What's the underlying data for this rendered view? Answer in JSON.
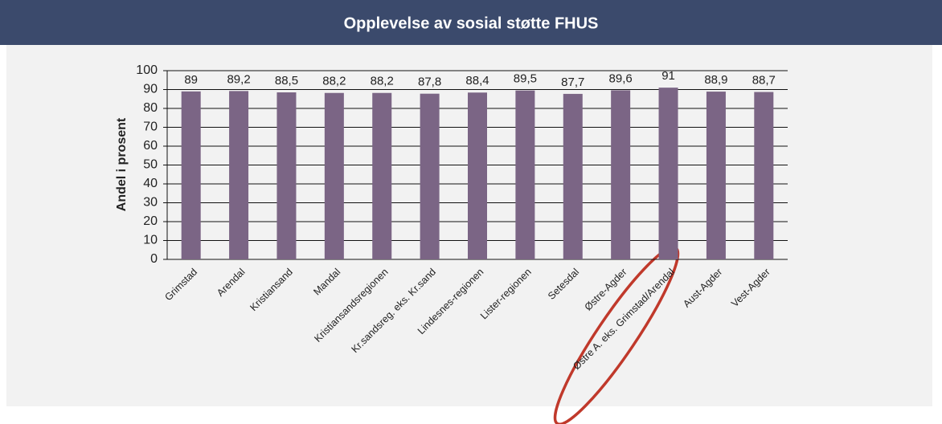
{
  "chart_data": {
    "type": "bar",
    "title": "Opplevelse av sosial støtte FHUS",
    "y_label": "Andel i prosent",
    "categories": [
      "Grimstad",
      "Arendal",
      "Kristiansand",
      "Mandal",
      "Kristiansandsregionen",
      "Kr.sandsreg. eks. Kr.sand",
      "Lindesnes-regionen",
      "Lister-regionen",
      "Setesdal",
      "Østre-Agder",
      "Østre A. eks. Grimstad/Arendal",
      "Aust-Agder",
      "Vest-Agder"
    ],
    "values": [
      89,
      89.2,
      88.5,
      88.2,
      88.2,
      87.8,
      88.4,
      89.5,
      87.7,
      89.6,
      91,
      88.9,
      88.7
    ],
    "value_labels": [
      "89",
      "89,2",
      "88,5",
      "88,2",
      "88,2",
      "87,8",
      "88,4",
      "89,5",
      "87,7",
      "89,6",
      "91",
      "88,9",
      "88,7"
    ],
    "color": "#7b6585",
    "ylim": [
      0,
      100
    ],
    "yticks": [
      0,
      10,
      20,
      30,
      40,
      50,
      60,
      70,
      80,
      90,
      100
    ],
    "grid": true
  }
}
